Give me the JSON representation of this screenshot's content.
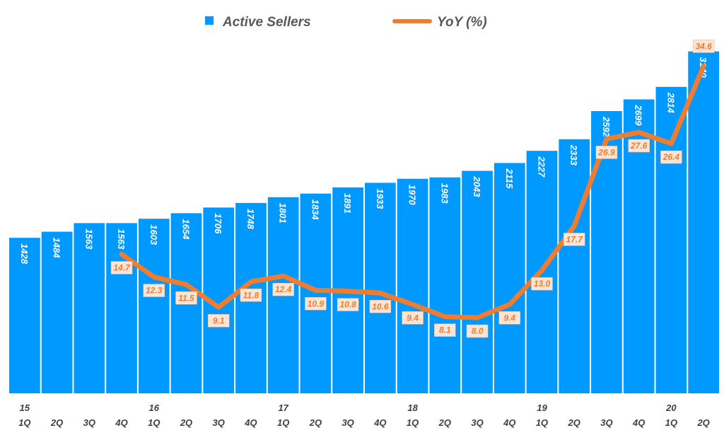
{
  "chart_data": {
    "type": "bar+line",
    "title": "",
    "categories": [
      "1Q",
      "2Q",
      "3Q",
      "4Q",
      "1Q",
      "2Q",
      "3Q",
      "4Q",
      "1Q",
      "2Q",
      "3Q",
      "4Q",
      "1Q",
      "2Q",
      "3Q",
      "4Q",
      "1Q",
      "2Q",
      "3Q",
      "4Q",
      "1Q",
      "2Q"
    ],
    "year_labels": [
      "15",
      "",
      "",
      "",
      "16",
      "",
      "",
      "",
      "17",
      "",
      "",
      "",
      "18",
      "",
      "",
      "",
      "19",
      "",
      "",
      "",
      "20",
      ""
    ],
    "series": [
      {
        "name": "Active Sellers",
        "type": "bar",
        "axis": "left",
        "color": "#0099FF",
        "values": [
          1428,
          1484,
          1563,
          1563,
          1603,
          1654,
          1706,
          1748,
          1801,
          1834,
          1891,
          1933,
          1970,
          1983,
          2043,
          2115,
          2227,
          2333,
          2592,
          2699,
          2814,
          3140
        ]
      },
      {
        "name": "YoY (%)",
        "type": "line",
        "axis": "right",
        "color": "#ED7D31",
        "values": [
          null,
          null,
          null,
          14.7,
          12.3,
          11.5,
          9.1,
          11.8,
          12.4,
          10.9,
          10.8,
          10.6,
          9.4,
          8.1,
          8.0,
          9.4,
          13.0,
          17.7,
          26.9,
          27.6,
          26.4,
          34.6
        ]
      }
    ],
    "ylim_left": [
      0,
      3300
    ],
    "ylim_right": [
      0,
      38
    ],
    "grid": false,
    "legend_position": "top"
  }
}
